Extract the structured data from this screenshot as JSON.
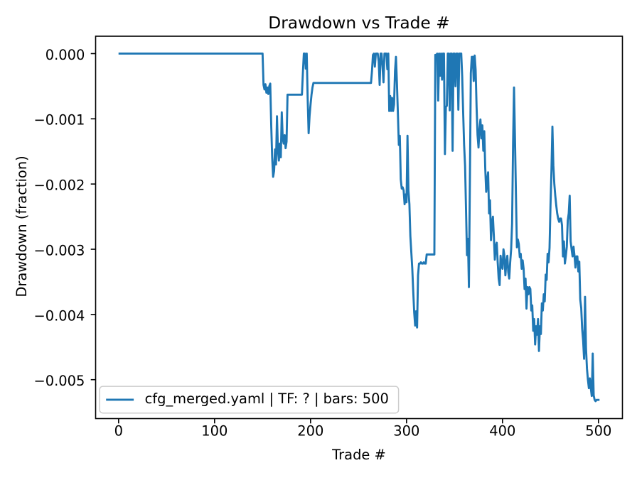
{
  "window": {
    "background": "#ffffff"
  },
  "chart_data": {
    "type": "line",
    "title": "Drawdown vs Trade #",
    "xlabel": "Trade #",
    "ylabel": "Drawdown (fraction)",
    "grid": false,
    "line_color": "#1f77b4",
    "text_color": "#000000",
    "spine_color": "#000000",
    "xlim": [
      -23.95,
      524.95
    ],
    "ylim": [
      -0.0055965,
      0.0002665
    ],
    "x_ticks": [
      0,
      100,
      200,
      300,
      400,
      500
    ],
    "x_tick_labels": [
      "0",
      "100",
      "200",
      "300",
      "400",
      "500"
    ],
    "y_ticks": [
      0.0,
      -0.001,
      -0.002,
      -0.003,
      -0.004,
      -0.005
    ],
    "y_tick_labels": [
      "0.000",
      "−0.001",
      "−0.002",
      "−0.003",
      "−0.004",
      "−0.005"
    ],
    "legend": {
      "label": "cfg_merged.yaml | TF: ? | bars: 500",
      "position": "lower left",
      "frame_color": "#cccccc"
    },
    "x_start": 1,
    "y": [
      0.0,
      0.0,
      0.0,
      0.0,
      0.0,
      0.0,
      0.0,
      0.0,
      0.0,
      0.0,
      0.0,
      0.0,
      0.0,
      0.0,
      0.0,
      0.0,
      0.0,
      0.0,
      0.0,
      0.0,
      0.0,
      0.0,
      0.0,
      0.0,
      0.0,
      0.0,
      0.0,
      0.0,
      0.0,
      0.0,
      0.0,
      0.0,
      0.0,
      0.0,
      0.0,
      0.0,
      0.0,
      0.0,
      0.0,
      0.0,
      0.0,
      0.0,
      0.0,
      0.0,
      0.0,
      0.0,
      0.0,
      0.0,
      0.0,
      0.0,
      0.0,
      0.0,
      0.0,
      0.0,
      0.0,
      0.0,
      0.0,
      0.0,
      0.0,
      0.0,
      0.0,
      0.0,
      0.0,
      0.0,
      0.0,
      0.0,
      0.0,
      0.0,
      0.0,
      0.0,
      0.0,
      0.0,
      0.0,
      0.0,
      0.0,
      0.0,
      0.0,
      0.0,
      0.0,
      0.0,
      0.0,
      0.0,
      0.0,
      0.0,
      0.0,
      0.0,
      0.0,
      0.0,
      0.0,
      0.0,
      0.0,
      0.0,
      0.0,
      0.0,
      0.0,
      0.0,
      0.0,
      0.0,
      0.0,
      0.0,
      0.0,
      0.0,
      0.0,
      0.0,
      0.0,
      0.0,
      0.0,
      0.0,
      0.0,
      0.0,
      0.0,
      0.0,
      0.0,
      0.0,
      0.0,
      0.0,
      0.0,
      0.0,
      0.0,
      0.0,
      0.0,
      0.0,
      0.0,
      0.0,
      0.0,
      0.0,
      0.0,
      0.0,
      0.0,
      0.0,
      0.0,
      0.0,
      0.0,
      0.0,
      0.0,
      0.0,
      0.0,
      0.0,
      0.0,
      0.0,
      0.0,
      0.0,
      0.0,
      0.0,
      0.0,
      0.0,
      0.0,
      0.0,
      0.0,
      0.0,
      -0.00048,
      -0.00055,
      -0.00047,
      -0.0006,
      -0.00052,
      -0.00062,
      -0.0005,
      -0.00046,
      -0.00109,
      -0.00159,
      -0.00189,
      -0.0018,
      -0.00147,
      -0.0017,
      -0.00096,
      -0.00147,
      -0.00164,
      -0.00138,
      -0.00159,
      -0.0009,
      -0.0013,
      -0.00138,
      -0.00125,
      -0.00145,
      -0.00135,
      -0.00063,
      -0.00063,
      -0.00063,
      -0.00063,
      -0.00063,
      -0.00063,
      -0.00063,
      -0.00063,
      -0.00063,
      -0.00063,
      -0.00063,
      -0.00063,
      -0.00063,
      -0.00063,
      -0.00063,
      -0.00063,
      -0.0003,
      0.0,
      0.0,
      -0.00023,
      0.0,
      -0.00069,
      -0.00122,
      -0.00095,
      -0.00078,
      -0.00063,
      -0.00052,
      -0.00045,
      -0.00045,
      -0.00045,
      -0.00045,
      -0.00045,
      -0.00045,
      -0.00045,
      -0.00045,
      -0.00045,
      -0.00045,
      -0.00045,
      -0.00045,
      -0.00045,
      -0.00045,
      -0.00045,
      -0.00045,
      -0.00045,
      -0.00045,
      -0.00045,
      -0.00045,
      -0.00045,
      -0.00045,
      -0.00045,
      -0.00045,
      -0.00045,
      -0.00045,
      -0.00045,
      -0.00045,
      -0.00045,
      -0.00045,
      -0.00045,
      -0.00045,
      -0.00045,
      -0.00045,
      -0.00045,
      -0.00045,
      -0.00045,
      -0.00045,
      -0.00045,
      -0.00045,
      -0.00045,
      -0.00045,
      -0.00045,
      -0.00045,
      -0.00045,
      -0.00045,
      -0.00045,
      -0.00045,
      -0.00045,
      -0.00045,
      -0.00045,
      -0.00045,
      -0.00045,
      -0.00045,
      -0.00045,
      -0.00045,
      -0.00045,
      -0.00045,
      -0.00045,
      -0.00045,
      -0.00045,
      -0.00027,
      -2e-05,
      0.0,
      -0.0002,
      0.0,
      0.0,
      0.0,
      -0.00012,
      -0.00048,
      0.0,
      0.0,
      -0.0002,
      -0.00044,
      0.0,
      0.0,
      0.0,
      -0.00024,
      0.0,
      -0.00088,
      -0.00065,
      -0.00088,
      -0.00068,
      -0.00088,
      -0.00078,
      -0.00027,
      -5e-05,
      -0.00045,
      -0.00092,
      -0.0014,
      -0.00126,
      -0.00193,
      -0.00207,
      -0.00205,
      -0.0021,
      -0.00231,
      -0.00216,
      -0.00228,
      -0.00126,
      -0.0021,
      -0.00231,
      -0.0028,
      -0.00305,
      -0.0033,
      -0.00365,
      -0.00397,
      -0.00417,
      -0.00395,
      -0.0042,
      -0.0034,
      -0.00322,
      -0.00322,
      -0.0032,
      -0.00322,
      -0.00322,
      -0.0032,
      -0.00322,
      -0.00322,
      -0.00308,
      -0.00308,
      -0.00308,
      -0.00308,
      -0.00308,
      -0.00308,
      -0.00308,
      -0.00308,
      -0.00308,
      -2e-05,
      -2e-05,
      0.0,
      -0.00072,
      0.0,
      -0.00034,
      0.0,
      -0.0004,
      0.0,
      0.0,
      -0.00154,
      -0.00082,
      -0.0008,
      0.0,
      0.0,
      -0.00087,
      0.0,
      0.0,
      -0.00149,
      0.0,
      0.0,
      -0.0005,
      0.0,
      0.0,
      -0.00086,
      0.0,
      0.0,
      0.0,
      -0.00035,
      -0.0009,
      -0.0014,
      -0.00172,
      -0.0024,
      -0.00309,
      -0.00284,
      -0.00358,
      -0.002,
      -0.0003,
      -5e-05,
      -5e-05,
      -0.00042,
      -3e-05,
      -0.00025,
      -0.00082,
      -0.00125,
      -0.00144,
      -0.00115,
      -0.00101,
      -0.0013,
      -0.0011,
      -0.00149,
      -0.00119,
      -0.00175,
      -0.00212,
      -0.00195,
      -0.00182,
      -0.00245,
      -0.00225,
      -0.00286,
      -0.0026,
      -0.0025,
      -0.0028,
      -0.00316,
      -0.00295,
      -0.0029,
      -0.0032,
      -0.00345,
      -0.00355,
      -0.0031,
      -0.00325,
      -0.0033,
      -0.003,
      -0.0031,
      -0.0034,
      -0.0032,
      -0.0031,
      -0.00335,
      -0.00345,
      -0.0032,
      -0.003,
      -0.0026,
      -0.0014,
      -0.00052,
      -0.0013,
      -0.00216,
      -0.00297,
      -0.00285,
      -0.00292,
      -0.00312,
      -0.00307,
      -0.0033,
      -0.00317,
      -0.0033,
      -0.00361,
      -0.00345,
      -0.00391,
      -0.00358,
      -0.00369,
      -0.00358,
      -0.00361,
      -0.00394,
      -0.00386,
      -0.00425,
      -0.00407,
      -0.00446,
      -0.00418,
      -0.00431,
      -0.00407,
      -0.00456,
      -0.00418,
      -0.0043,
      -0.00383,
      -0.00394,
      -0.00369,
      -0.0038,
      -0.00339,
      -0.00347,
      -0.00307,
      -0.0032,
      -0.00298,
      -0.00233,
      -0.00179,
      -0.00112,
      -0.00172,
      -0.002,
      -0.00218,
      -0.00233,
      -0.00245,
      -0.00253,
      -0.00258,
      -0.00253,
      -0.00253,
      -0.00263,
      -0.00311,
      -0.00288,
      -0.00322,
      -0.0031,
      -0.00296,
      -0.00256,
      -0.00245,
      -0.00218,
      -0.00288,
      -0.003,
      -0.00311,
      -0.00296,
      -0.0031,
      -0.00328,
      -0.00311,
      -0.00311,
      -0.00334,
      -0.00319,
      -0.00377,
      -0.0039,
      -0.00422,
      -0.0044,
      -0.00468,
      -0.00373,
      -0.00452,
      -0.00483,
      -0.005,
      -0.00513,
      -0.00498,
      -0.00513,
      -0.00525,
      -0.0046,
      -0.00524,
      -0.00531,
      -0.00533,
      -0.00531,
      -0.00531,
      -0.00531
    ]
  }
}
